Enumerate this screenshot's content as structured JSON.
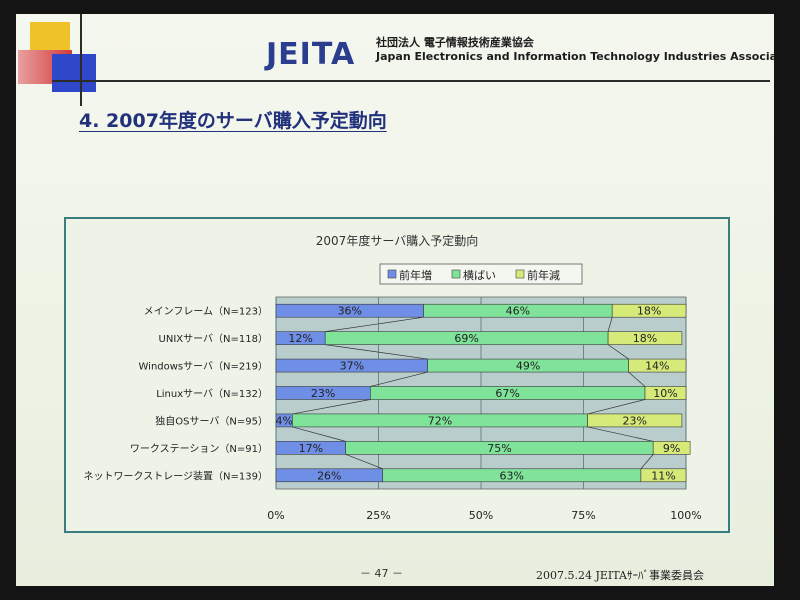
{
  "header": {
    "logo_text": "JEITA",
    "org_name_jp": "社団法人 電子情報技術産業協会",
    "org_name_en": "Japan Electronics and Information Technology Industries Association"
  },
  "slide_title": "4. 2007年度のサーバ購入予定動向",
  "footer": {
    "page_number": "－ 47 －",
    "text": "2007.5.24 JEITAｻｰﾊﾞ事業委員会"
  },
  "colors": {
    "increase": "#6f8fe6",
    "flat": "#7fe39a",
    "decrease": "#d6ea7a",
    "plot_bg": "#b9cdcd"
  },
  "chart_data": {
    "type": "bar",
    "orientation": "horizontal",
    "stacked": true,
    "percent_stacked": true,
    "title": "2007年度サーバ購入予定動向",
    "categories": [
      "メインフレーム（N=123）",
      "UNIXサーバ（N=118）",
      "Windowsサーバ（N=219）",
      "Linuxサーバ（N=132）",
      "独自OSサーバ（N=95）",
      "ワークステーション（N=91）",
      "ネットワークストレージ装置（N=139）"
    ],
    "series": [
      {
        "name": "前年増",
        "values": [
          36,
          12,
          37,
          23,
          4,
          17,
          26
        ]
      },
      {
        "name": "横ばい",
        "values": [
          46,
          69,
          49,
          67,
          72,
          75,
          63
        ]
      },
      {
        "name": "前年減",
        "values": [
          18,
          18,
          14,
          10,
          23,
          9,
          11
        ]
      }
    ],
    "xticks": [
      "0%",
      "25%",
      "50%",
      "75%",
      "100%"
    ],
    "xlim": [
      0,
      100
    ],
    "legend_position": "top",
    "grid": true,
    "series_lines": true
  }
}
